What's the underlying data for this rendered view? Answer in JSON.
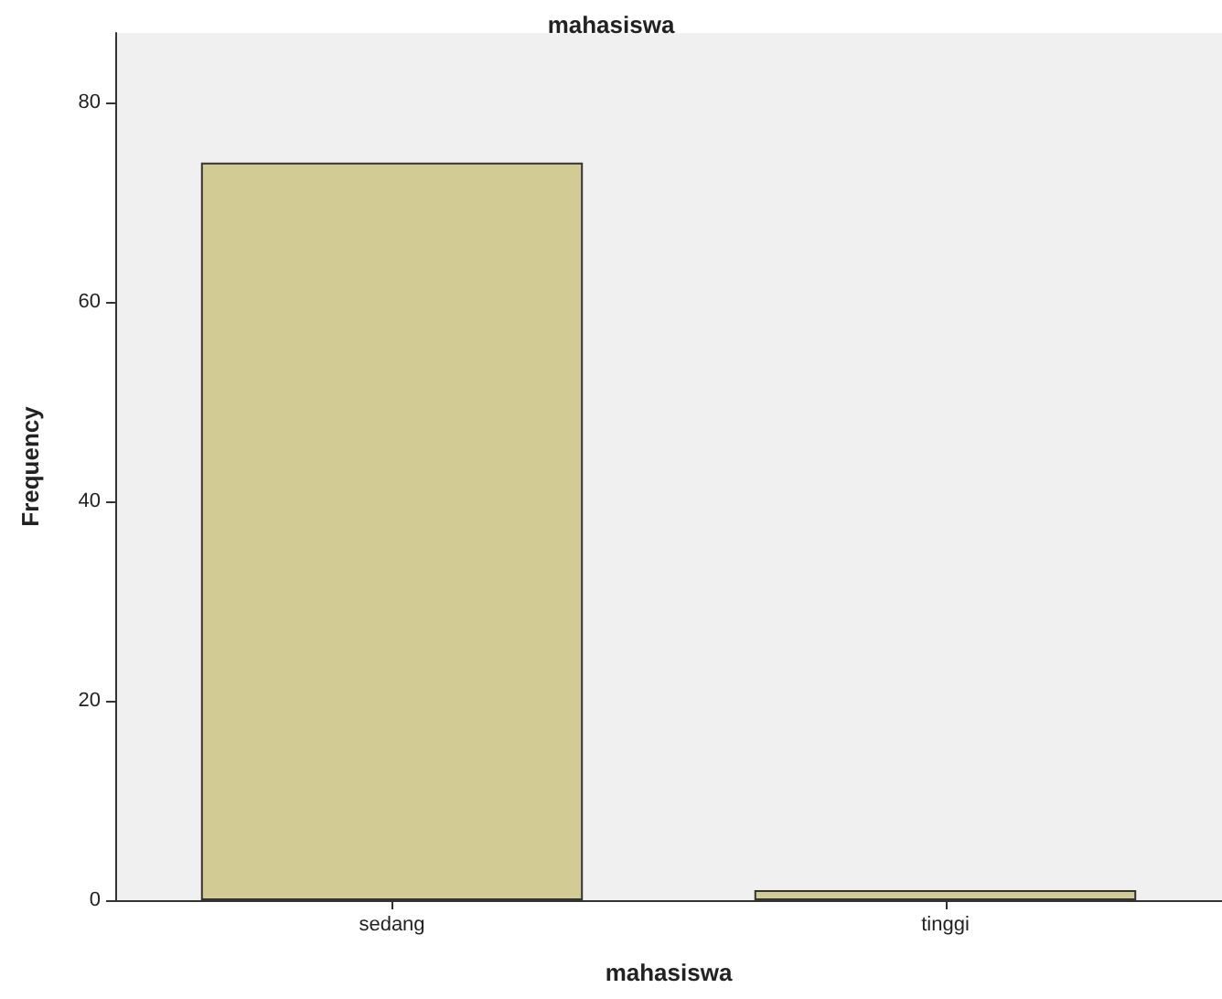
{
  "chart_data": {
    "type": "bar",
    "title": "mahasiswa",
    "xlabel": "mahasiswa",
    "ylabel": "Frequency",
    "categories": [
      "sedang",
      "tinggi"
    ],
    "values": [
      74,
      1
    ],
    "color": "#d2cc94",
    "ylim": [
      0,
      87
    ],
    "yticks": [
      0,
      20,
      40,
      60,
      80
    ],
    "grid": false
  }
}
